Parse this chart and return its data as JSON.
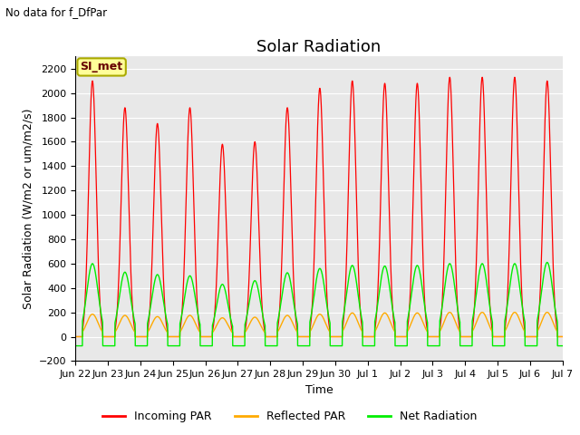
{
  "title": "Solar Radiation",
  "top_left_text": "No data for f_DfPar",
  "ylabel": "Solar Radiation (W/m2 or um/m2/s)",
  "xlabel": "Time",
  "legend_label": "SI_met",
  "ylim": [
    -200,
    2300
  ],
  "yticks": [
    -200,
    0,
    200,
    400,
    600,
    800,
    1000,
    1200,
    1400,
    1600,
    1800,
    2000,
    2200
  ],
  "line_colors": {
    "incoming": "#ff0000",
    "reflected": "#ffaa00",
    "net": "#00ee00"
  },
  "line_labels": [
    "Incoming PAR",
    "Reflected PAR",
    "Net Radiation"
  ],
  "bg_color": "#e8e8e8",
  "fig_bg_color": "#ffffff",
  "title_fontsize": 13,
  "axis_fontsize": 9,
  "tick_fontsize": 8,
  "legend_fontsize": 9,
  "legend_box_facecolor": "#ffff99",
  "legend_box_edgecolor": "#aaaa00",
  "incoming_peaks": [
    2100,
    1880,
    1750,
    1880,
    1580,
    1600,
    1880,
    2040,
    2100,
    2080,
    2080,
    2130,
    2130,
    2130,
    2100
  ],
  "net_peaks": [
    600,
    530,
    510,
    500,
    430,
    460,
    525,
    560,
    585,
    580,
    585,
    600,
    600,
    600,
    610
  ],
  "reflected_peaks": [
    185,
    175,
    165,
    175,
    155,
    160,
    175,
    185,
    195,
    195,
    195,
    200,
    200,
    200,
    200
  ],
  "night_net": -75
}
